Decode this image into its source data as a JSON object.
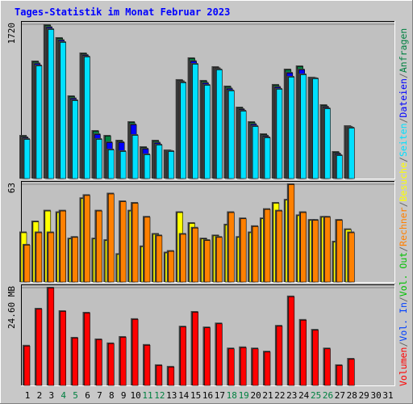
{
  "chart_data": {
    "type": "bar",
    "title": "Tages-Statistik im Monat Februar 2023",
    "categories": [
      "1",
      "2",
      "3",
      "4",
      "5",
      "6",
      "7",
      "8",
      "9",
      "10",
      "11",
      "12",
      "13",
      "14",
      "15",
      "16",
      "17",
      "18",
      "19",
      "20",
      "21",
      "22",
      "23",
      "24",
      "25",
      "26",
      "27",
      "28",
      "29",
      "30",
      "31"
    ],
    "category_colors": [
      "#000000",
      "#000000",
      "#000000",
      "#008040",
      "#008040",
      "#000000",
      "#000000",
      "#000000",
      "#000000",
      "#000000",
      "#008040",
      "#008040",
      "#000000",
      "#000000",
      "#000000",
      "#000000",
      "#000000",
      "#008040",
      "#008040",
      "#000000",
      "#000000",
      "#000000",
      "#000000",
      "#000000",
      "#008040",
      "#008040",
      "#000000",
      "#000000",
      "#000000",
      "#000000",
      "#000000"
    ],
    "legend_separator": "/",
    "panels": [
      {
        "ylim": [
          0,
          1720
        ],
        "yticks": [
          1720
        ],
        "series": [
          {
            "name": "Anfragen",
            "color": "#008040",
            "values": [
              477,
              1306,
              1711,
              1567,
              918,
              1396,
              531,
              477,
              423,
              630,
              351,
              423,
              315,
              1099,
              1342,
              1090,
              1243,
              1027,
              792,
              630,
              495,
              1045,
              1216,
              1252,
              1126,
              819,
              297,
              585,
              null,
              null,
              null
            ]
          },
          {
            "name": "Dateien",
            "color": "#0000ff",
            "values": [
              459,
              1283,
              1688,
              1544,
              895,
              1378,
              495,
              405,
              405,
              603,
              333,
              400,
              310,
              1085,
              1310,
              1067,
              1229,
              1004,
              774,
              607,
              477,
              1022,
              1180,
              1216,
              1121,
              801,
              279,
              576,
              null,
              null,
              null
            ]
          },
          {
            "name": "Seiten",
            "color": "#00e0ff",
            "values": [
              441,
              1260,
              1666,
              1522,
              873,
              1360,
              441,
              324,
              306,
              486,
              270,
              378,
              306,
              1072,
              1279,
              1044,
              1216,
              982,
              756,
              585,
              459,
              1000,
              1135,
              1162,
              1117,
              783,
              261,
              567,
              null,
              null,
              null
            ]
          }
        ]
      },
      {
        "ylim": [
          0,
          63
        ],
        "yticks": [
          63
        ],
        "series": [
          {
            "name": "Besuche",
            "color": "#ffff00",
            "values": [
              32,
              39,
              46,
              45,
              28,
              54,
              28,
              27,
              18,
              46,
              23,
              31,
              19,
              45,
              38,
              28,
              30,
              37,
              29,
              32,
              41,
              51,
              53,
              43,
              40,
              42,
              26,
              34,
              null,
              null,
              null
            ]
          },
          {
            "name": "Rechner",
            "color": "#ff8000",
            "values": [
              24,
              32,
              32,
              46,
              29,
              56,
              46,
              57,
              52,
              51,
              42,
              30,
              20,
              31,
              35,
              27,
              29,
              45,
              41,
              36,
              47,
              46,
              63,
              45,
              40,
              42,
              40,
              32,
              null,
              null,
              null
            ]
          }
        ]
      },
      {
        "ylim": [
          0,
          24.6
        ],
        "yticks": [
          {
            "value": 24.6,
            "label": "24.60 MB"
          }
        ],
        "series": [
          {
            "name": "Vol. Out",
            "color": "#00c000",
            "values": [
              null,
              null,
              null,
              null,
              null,
              null,
              null,
              null,
              null,
              null,
              null,
              null,
              null,
              null,
              null,
              null,
              null,
              null,
              null,
              null,
              null,
              null,
              null,
              null,
              null,
              null,
              null,
              null,
              null,
              null,
              null
            ]
          },
          {
            "name": "Vol. In",
            "color": "#0040ff",
            "values": [
              null,
              null,
              null,
              null,
              null,
              null,
              null,
              null,
              null,
              null,
              null,
              null,
              null,
              null,
              null,
              null,
              null,
              null,
              null,
              null,
              null,
              null,
              null,
              null,
              null,
              null,
              null,
              null,
              null,
              null,
              null
            ]
          },
          {
            "name": "Volumen",
            "color": "#ff0000",
            "values": [
              10.0,
              19.3,
              24.6,
              18.7,
              12.0,
              18.3,
              11.6,
              10.6,
              12.2,
              16.7,
              10.2,
              5.1,
              4.7,
              14.8,
              18.5,
              14.6,
              15.6,
              9.3,
              9.6,
              9.3,
              8.5,
              15.0,
              22.4,
              16.5,
              14.0,
              9.3,
              5.1,
              6.7,
              null,
              null,
              null
            ]
          }
        ]
      }
    ]
  }
}
